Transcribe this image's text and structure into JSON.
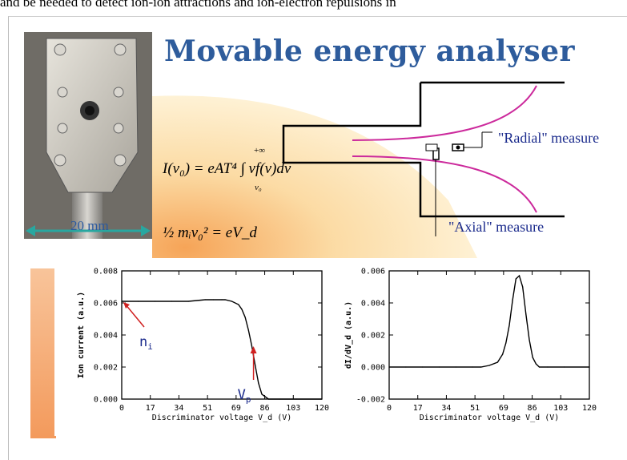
{
  "top_text": "and be needed to detect ion-ion attractions and ion-electron repulsions in",
  "title": "Movable energy analyser",
  "photo": {
    "scale_label": "20 mm"
  },
  "equations": {
    "current": "I(v₀) = eAT⁴ ∫ vf(v)dv",
    "current_upper": "+∞",
    "current_lower": "v₀",
    "energy": "½ mᵢv₀² = eV_d"
  },
  "diagram": {
    "radial_label": "\"Radial\" measure",
    "axial_label": "\"Axial\" measure"
  },
  "chart_data": [
    {
      "type": "line",
      "xlabel": "Discriminator voltage V_d (V)",
      "ylabel": "Ion current (a.u.)",
      "xlim": [
        0,
        120
      ],
      "ylim": [
        0,
        0.008
      ],
      "xticks": [
        "0",
        "17",
        "34",
        "51",
        "69",
        "86",
        "103",
        "120"
      ],
      "yticks": [
        "0.000",
        "0.002",
        "0.004",
        "0.006",
        "0.008"
      ],
      "x": [
        0,
        10,
        20,
        30,
        40,
        50,
        55,
        60,
        62,
        66,
        70,
        72,
        74,
        76,
        78,
        80,
        82,
        84,
        88,
        95,
        105,
        120
      ],
      "y": [
        0.0061,
        0.0061,
        0.0061,
        0.0061,
        0.0061,
        0.0062,
        0.0062,
        0.0062,
        0.0062,
        0.0061,
        0.0059,
        0.0056,
        0.0051,
        0.0043,
        0.0033,
        0.0021,
        0.001,
        0.0003,
        0.0,
        0.0,
        0.0,
        0.0
      ],
      "annotations": [
        {
          "text": "n",
          "sub": "i",
          "x": 0,
          "y": 0.0061
        },
        {
          "text": "V",
          "sub": "p",
          "x": 79,
          "y": 0.0034
        }
      ]
    },
    {
      "type": "line",
      "xlabel": "Discriminator voltage V_d (V)",
      "ylabel": "dI/dV_d (a.u.)",
      "xlim": [
        0,
        120
      ],
      "ylim": [
        -0.002,
        0.006
      ],
      "xticks": [
        "0",
        "17",
        "34",
        "51",
        "69",
        "86",
        "103",
        "120"
      ],
      "yticks": [
        "-0.002",
        "0.000",
        "0.002",
        "0.004",
        "0.006"
      ],
      "x": [
        0,
        10,
        20,
        30,
        40,
        50,
        55,
        60,
        65,
        68,
        70,
        72,
        74,
        76,
        78,
        80,
        82,
        84,
        86,
        88,
        90,
        95,
        105,
        120
      ],
      "y": [
        0.0,
        0.0,
        0.0,
        0.0,
        0.0,
        0.0,
        0.0,
        0.0001,
        0.0003,
        0.0008,
        0.0015,
        0.0026,
        0.0042,
        0.0055,
        0.0057,
        0.005,
        0.0033,
        0.0017,
        0.0006,
        0.0002,
        0.0,
        0.0,
        0.0,
        0.0
      ]
    }
  ]
}
